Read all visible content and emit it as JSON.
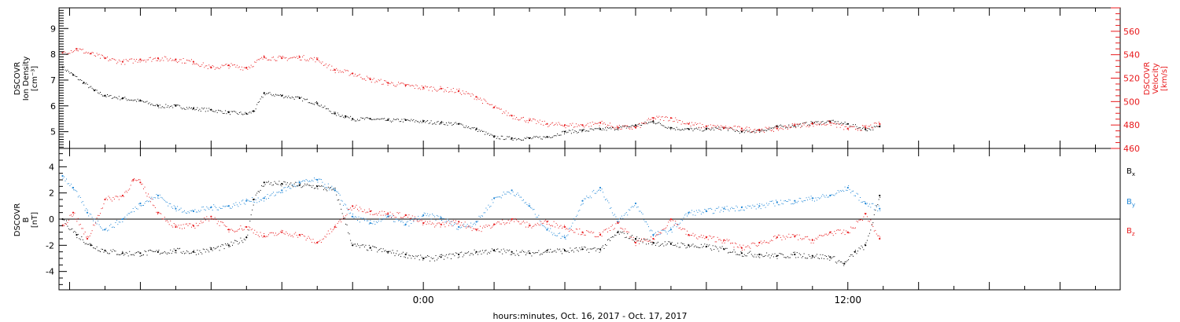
{
  "colors": {
    "black": "#000000",
    "red": "#e8191c",
    "blue": "#1f86d6"
  },
  "chart_data": [
    {
      "type": "scatter",
      "panel": "top",
      "ylabel": [
        "DSCOVR",
        "Ion Density",
        "[cm⁻³]"
      ],
      "y2label": [
        "DSCOVR",
        "Velocity",
        "[km/s]"
      ],
      "x_axis": {
        "label": "hours:minutes, Oct. 16, 2017 - Oct. 17, 2017",
        "ticks": [
          {
            "h": 0,
            "label": "0:00"
          },
          {
            "h": 12,
            "label": "12:00"
          }
        ],
        "xlim": [
          -10.3,
          19.7
        ]
      },
      "ylim": [
        4.35,
        9.8
      ],
      "yticks": [
        5,
        6,
        7,
        8,
        9
      ],
      "y2lim": [
        460,
        580
      ],
      "y2ticks": [
        460,
        480,
        500,
        520,
        540,
        560
      ],
      "series": [
        {
          "axis": "left",
          "color": "black",
          "x": [
            -10.2,
            -9.9,
            -9.6,
            -9.3,
            -9.0,
            -8.5,
            -8.0,
            -7.5,
            -7.0,
            -6.5,
            -6.0,
            -5.5,
            -5.0,
            -4.8,
            -4.5,
            -4.0,
            -3.5,
            -3.0,
            -2.5,
            -2.2,
            -2.0,
            -1.5,
            -1.0,
            -0.5,
            0.0,
            0.5,
            1.0,
            1.5,
            2.0,
            2.5,
            3.0,
            3.5,
            4.0,
            4.5,
            5.0,
            5.5,
            6.0,
            6.5,
            7.0,
            7.5,
            8.0,
            8.5,
            9.0,
            9.5,
            10.0,
            10.5,
            11.0,
            11.5,
            12.0,
            12.5,
            12.9
          ],
          "y": [
            7.5,
            7.2,
            6.9,
            6.6,
            6.4,
            6.3,
            6.2,
            6.0,
            6.0,
            5.9,
            5.85,
            5.75,
            5.7,
            5.8,
            6.5,
            6.4,
            6.3,
            6.1,
            5.7,
            5.6,
            5.5,
            5.5,
            5.45,
            5.45,
            5.4,
            5.35,
            5.3,
            5.1,
            4.8,
            4.75,
            4.75,
            4.8,
            5.0,
            5.05,
            5.1,
            5.15,
            5.25,
            5.4,
            5.15,
            5.1,
            5.1,
            5.15,
            5.0,
            5.05,
            5.2,
            5.25,
            5.35,
            5.4,
            5.3,
            5.1,
            5.2
          ]
        },
        {
          "axis": "right",
          "color": "red",
          "x": [
            -10.2,
            -9.8,
            -9.4,
            -9.0,
            -8.5,
            -8.0,
            -7.5,
            -7.0,
            -6.5,
            -6.0,
            -5.5,
            -5.0,
            -4.5,
            -4.0,
            -3.5,
            -3.0,
            -2.5,
            -2.0,
            -1.5,
            -1.0,
            -0.5,
            0.0,
            0.5,
            1.0,
            1.5,
            2.0,
            2.5,
            3.0,
            3.5,
            4.0,
            4.5,
            5.0,
            5.5,
            6.0,
            6.5,
            7.0,
            7.5,
            8.0,
            8.5,
            9.0,
            9.5,
            10.0,
            10.5,
            11.0,
            11.5,
            12.0,
            12.5,
            12.9
          ],
          "y": [
            542,
            545,
            541,
            537,
            534,
            536,
            537,
            536,
            534,
            529,
            531,
            529,
            538,
            537,
            538,
            536,
            527,
            524,
            519,
            516,
            514,
            512,
            511,
            509,
            504,
            495,
            488,
            484,
            481,
            480,
            480,
            482,
            478,
            478,
            486,
            486,
            481,
            479,
            478,
            477,
            476,
            477,
            480,
            481,
            482,
            477,
            478,
            481
          ]
        }
      ]
    },
    {
      "type": "scatter",
      "panel": "bottom",
      "ylabel": [
        "DSCOVR",
        "B",
        "[nT]"
      ],
      "ylim": [
        -5.4,
        5.4
      ],
      "yticks": [
        -4,
        -2,
        0,
        2,
        4
      ],
      "legend": [
        {
          "label": "B",
          "sub": "x",
          "color": "black"
        },
        {
          "label": "B",
          "sub": "y",
          "color": "blue"
        },
        {
          "label": "B",
          "sub": "z",
          "color": "red"
        }
      ],
      "legend_position": "right",
      "series": [
        {
          "name": "Bx",
          "color": "black",
          "x": [
            -10.2,
            -9.8,
            -9.4,
            -9.0,
            -8.5,
            -8.0,
            -7.5,
            -7.0,
            -6.5,
            -6.0,
            -5.5,
            -5.0,
            -4.8,
            -4.5,
            -4.0,
            -3.5,
            -3.0,
            -2.5,
            -2.0,
            -1.5,
            -1.0,
            -0.5,
            0.0,
            0.5,
            1.0,
            1.5,
            2.0,
            2.5,
            3.0,
            3.5,
            4.0,
            4.5,
            5.0,
            5.5,
            6.0,
            6.5,
            7.0,
            7.5,
            8.0,
            8.5,
            9.0,
            9.5,
            10.0,
            10.5,
            11.0,
            11.5,
            11.9,
            12.2,
            12.5,
            12.9
          ],
          "y": [
            0.0,
            -1.2,
            -2.0,
            -2.4,
            -2.6,
            -2.6,
            -2.5,
            -2.4,
            -2.5,
            -2.3,
            -2.0,
            -1.4,
            1.5,
            2.8,
            2.7,
            2.6,
            2.5,
            2.2,
            -2.0,
            -2.2,
            -2.5,
            -2.7,
            -3.0,
            -2.9,
            -2.7,
            -2.5,
            -2.4,
            -2.5,
            -2.6,
            -2.4,
            -2.4,
            -2.3,
            -2.3,
            -1.0,
            -1.5,
            -1.8,
            -1.9,
            -2.0,
            -2.1,
            -2.3,
            -2.6,
            -2.7,
            -2.8,
            -2.7,
            -2.8,
            -2.9,
            -3.4,
            -2.5,
            -2.0,
            1.8
          ]
        },
        {
          "name": "By",
          "color": "blue",
          "x": [
            -10.2,
            -9.9,
            -9.5,
            -9.0,
            -8.5,
            -8.0,
            -7.5,
            -7.0,
            -6.5,
            -6.0,
            -5.5,
            -5.0,
            -4.5,
            -4.0,
            -3.5,
            -3.0,
            -2.5,
            -2.0,
            -1.5,
            -1.0,
            -0.5,
            0.0,
            0.5,
            1.0,
            1.5,
            2.0,
            2.5,
            3.0,
            3.5,
            4.0,
            4.5,
            5.0,
            5.5,
            6.0,
            6.5,
            7.0,
            7.5,
            8.0,
            8.5,
            9.0,
            9.5,
            10.0,
            10.5,
            11.0,
            11.5,
            12.0,
            12.5,
            12.9
          ],
          "y": [
            3.3,
            2.4,
            0.5,
            -0.8,
            0.0,
            1.2,
            1.8,
            0.8,
            0.6,
            0.9,
            1.0,
            1.4,
            1.6,
            2.2,
            2.8,
            3.0,
            2.2,
            0.2,
            -0.3,
            0.2,
            -0.4,
            0.3,
            0.1,
            -0.6,
            -0.2,
            1.6,
            2.2,
            1.0,
            -0.8,
            -1.4,
            1.4,
            2.4,
            -0.2,
            1.2,
            -1.2,
            -0.8,
            0.5,
            0.6,
            0.8,
            0.9,
            1.0,
            1.3,
            1.4,
            1.6,
            1.8,
            2.4,
            1.2,
            0.8
          ]
        },
        {
          "name": "Bz",
          "color": "red",
          "x": [
            -10.2,
            -9.9,
            -9.5,
            -9.0,
            -8.5,
            -8.2,
            -8.0,
            -7.5,
            -7.0,
            -6.5,
            -6.0,
            -5.5,
            -5.0,
            -4.5,
            -4.0,
            -3.5,
            -3.0,
            -2.5,
            -2.0,
            -1.5,
            -1.0,
            -0.5,
            0.0,
            0.5,
            1.0,
            1.5,
            2.0,
            2.5,
            3.0,
            3.5,
            4.0,
            4.5,
            5.0,
            5.5,
            6.0,
            6.5,
            7.0,
            7.5,
            8.0,
            8.5,
            9.0,
            9.5,
            10.0,
            10.5,
            11.0,
            11.5,
            12.0,
            12.5,
            12.9
          ],
          "y": [
            -0.5,
            0.5,
            -1.5,
            1.5,
            1.8,
            3.0,
            2.8,
            0.5,
            -0.6,
            -0.5,
            0.2,
            -0.8,
            -0.6,
            -1.3,
            -1.0,
            -1.2,
            -1.8,
            -0.6,
            1.0,
            0.6,
            0.4,
            0.3,
            -0.3,
            -0.4,
            -0.2,
            -0.8,
            -0.4,
            0.0,
            -0.5,
            -0.2,
            -0.6,
            -1.0,
            -1.2,
            -0.3,
            -1.8,
            -1.5,
            0.0,
            -1.2,
            -1.4,
            -1.6,
            -2.2,
            -1.8,
            -1.4,
            -1.3,
            -1.6,
            -1.0,
            -1.0,
            0.4,
            -1.5
          ]
        }
      ]
    }
  ]
}
